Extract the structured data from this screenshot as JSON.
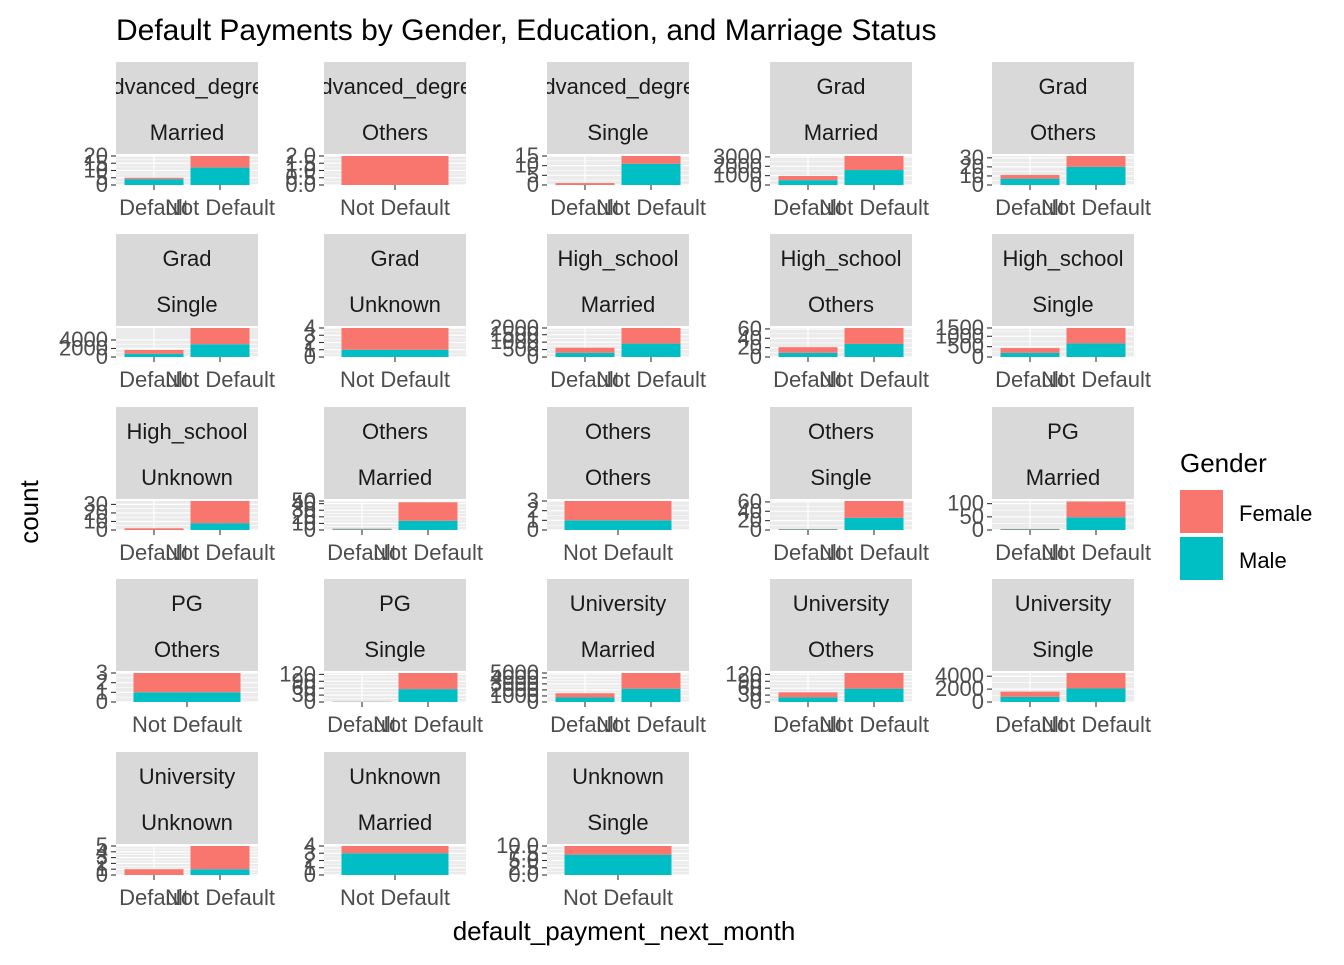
{
  "chart_data": {
    "type": "bar",
    "stacked": true,
    "title": "Default Payments by Gender, Education, and Marriage Status",
    "xlabel": "default_payment_next_month",
    "ylabel": "count",
    "legend": {
      "title": "Gender",
      "entries": [
        {
          "name": "Female",
          "color": "#F8766D"
        },
        {
          "name": "Male",
          "color": "#00BFC4"
        }
      ],
      "placement": "right"
    },
    "panels": [
      {
        "strip": [
          "Advanced_degree",
          "Married"
        ],
        "categories": [
          "Default",
          "Not Default"
        ],
        "female": [
          1,
          8
        ],
        "male": [
          4,
          12
        ],
        "ylim": [
          0,
          20
        ],
        "yticks": [
          0,
          5,
          10,
          15,
          20
        ]
      },
      {
        "strip": [
          "Advanced_degree",
          "Others"
        ],
        "categories": [
          "Not Default"
        ],
        "female": [
          2
        ],
        "male": [
          0
        ],
        "ylim": [
          0,
          2
        ],
        "yticks": [
          0.0,
          0.5,
          1.0,
          1.5,
          2.0
        ]
      },
      {
        "strip": [
          "Advanced_degree",
          "Single"
        ],
        "categories": [
          "Default",
          "Not Default"
        ],
        "female": [
          1,
          4
        ],
        "male": [
          0,
          11
        ],
        "ylim": [
          0,
          15
        ],
        "yticks": [
          0,
          5,
          10,
          15
        ]
      },
      {
        "strip": [
          "Grad",
          "Married"
        ],
        "categories": [
          "Default",
          "Not Default"
        ],
        "female": [
          450,
          1500
        ],
        "male": [
          520,
          1600
        ],
        "ylim": [
          0,
          3100
        ],
        "yticks": [
          0,
          1000,
          2000,
          3000
        ]
      },
      {
        "strip": [
          "Grad",
          "Others"
        ],
        "categories": [
          "Default",
          "Not Default"
        ],
        "female": [
          4,
          12
        ],
        "male": [
          7,
          20
        ],
        "ylim": [
          0,
          32
        ],
        "yticks": [
          0,
          10,
          20,
          30
        ]
      },
      {
        "strip": [
          "Grad",
          "Single"
        ],
        "categories": [
          "Default",
          "Not Default"
        ],
        "female": [
          880,
          3800
        ],
        "male": [
          760,
          3000
        ],
        "ylim": [
          0,
          6800
        ],
        "yticks": [
          0,
          2000,
          4000
        ]
      },
      {
        "strip": [
          "Grad",
          "Unknown"
        ],
        "categories": [
          "Not Default"
        ],
        "female": [
          3
        ],
        "male": [
          1
        ],
        "ylim": [
          0,
          4
        ],
        "yticks": [
          0,
          1,
          2,
          3,
          4
        ]
      },
      {
        "strip": [
          "High_school",
          "Married"
        ],
        "categories": [
          "Default",
          "Not Default"
        ],
        "female": [
          340,
          1050
        ],
        "male": [
          280,
          900
        ],
        "ylim": [
          0,
          1950
        ],
        "yticks": [
          0,
          500,
          1000,
          1500,
          2000
        ]
      },
      {
        "strip": [
          "High_school",
          "Others"
        ],
        "categories": [
          "Default",
          "Not Default"
        ],
        "female": [
          12,
          34
        ],
        "male": [
          9,
          28
        ],
        "ylim": [
          0,
          62
        ],
        "yticks": [
          0,
          20,
          40,
          60
        ]
      },
      {
        "strip": [
          "High_school",
          "Single"
        ],
        "categories": [
          "Default",
          "Not Default"
        ],
        "female": [
          230,
          740
        ],
        "male": [
          200,
          660
        ],
        "ylim": [
          0,
          1400
        ],
        "yticks": [
          0,
          500,
          1000,
          1500
        ]
      },
      {
        "strip": [
          "High_school",
          "Unknown"
        ],
        "categories": [
          "Default",
          "Not Default"
        ],
        "female": [
          2,
          26
        ],
        "male": [
          0,
          8
        ],
        "ylim": [
          0,
          34
        ],
        "yticks": [
          0,
          10,
          20,
          30,
          40
        ]
      },
      {
        "strip": [
          "Others",
          "Married"
        ],
        "categories": [
          "Default",
          "Not Default"
        ],
        "female": [
          1,
          28
        ],
        "male": [
          1,
          14
        ],
        "ylim": [
          0,
          44
        ],
        "yticks": [
          0,
          10,
          20,
          30,
          40,
          50
        ]
      },
      {
        "strip": [
          "Others",
          "Others"
        ],
        "categories": [
          "Not Default"
        ],
        "female": [
          2
        ],
        "male": [
          1
        ],
        "ylim": [
          0,
          3
        ],
        "yticks": [
          0,
          1,
          2,
          3
        ]
      },
      {
        "strip": [
          "Others",
          "Single"
        ],
        "categories": [
          "Default",
          "Not Default"
        ],
        "female": [
          1,
          36
        ],
        "male": [
          1,
          26
        ],
        "ylim": [
          0,
          62
        ],
        "yticks": [
          0,
          20,
          40,
          60
        ]
      },
      {
        "strip": [
          "PG",
          "Married"
        ],
        "categories": [
          "Default",
          "Not Default"
        ],
        "female": [
          2,
          60
        ],
        "male": [
          2,
          48
        ],
        "ylim": [
          0,
          110
        ],
        "yticks": [
          0,
          50,
          100
        ]
      },
      {
        "strip": [
          "PG",
          "Others"
        ],
        "categories": [
          "Not Default"
        ],
        "female": [
          2
        ],
        "male": [
          1
        ],
        "ylim": [
          0,
          3
        ],
        "yticks": [
          0,
          1,
          2,
          3
        ]
      },
      {
        "strip": [
          "PG",
          "Single"
        ],
        "categories": [
          "Default",
          "Not Default"
        ],
        "female": [
          1,
          70
        ],
        "male": [
          1,
          56
        ],
        "ylim": [
          0,
          126
        ],
        "yticks": [
          0,
          30,
          60,
          90,
          120
        ]
      },
      {
        "strip": [
          "University",
          "Married"
        ],
        "categories": [
          "Default",
          "Not Default"
        ],
        "female": [
          700,
          2600
        ],
        "male": [
          750,
          2200
        ],
        "ylim": [
          0,
          4800
        ],
        "yticks": [
          0,
          1000,
          2000,
          3000,
          4000,
          5000
        ]
      },
      {
        "strip": [
          "University",
          "Others"
        ],
        "categories": [
          "Default",
          "Not Default"
        ],
        "female": [
          22,
          68
        ],
        "male": [
          20,
          58
        ],
        "ylim": [
          0,
          126
        ],
        "yticks": [
          0,
          30,
          60,
          90,
          120
        ]
      },
      {
        "strip": [
          "University",
          "Single"
        ],
        "categories": [
          "Default",
          "Not Default"
        ],
        "female": [
          800,
          2400
        ],
        "male": [
          800,
          2100
        ],
        "ylim": [
          0,
          4500
        ],
        "yticks": [
          0,
          2000,
          4000
        ]
      },
      {
        "strip": [
          "University",
          "Unknown"
        ],
        "categories": [
          "Default",
          "Not Default"
        ],
        "female": [
          1,
          4
        ],
        "male": [
          0,
          1
        ],
        "ylim": [
          0,
          5
        ],
        "yticks": [
          0,
          1,
          2,
          3,
          4,
          5
        ]
      },
      {
        "strip": [
          "Unknown",
          "Married"
        ],
        "categories": [
          "Not Default"
        ],
        "female": [
          1
        ],
        "male": [
          3
        ],
        "ylim": [
          0,
          4
        ],
        "yticks": [
          0,
          1,
          2,
          3,
          4
        ]
      },
      {
        "strip": [
          "Unknown",
          "Single"
        ],
        "categories": [
          "Not Default"
        ],
        "female": [
          3
        ],
        "male": [
          7
        ],
        "ylim": [
          0,
          10
        ],
        "yticks": [
          0.0,
          2.5,
          5.0,
          7.5,
          10.0
        ]
      }
    ]
  }
}
